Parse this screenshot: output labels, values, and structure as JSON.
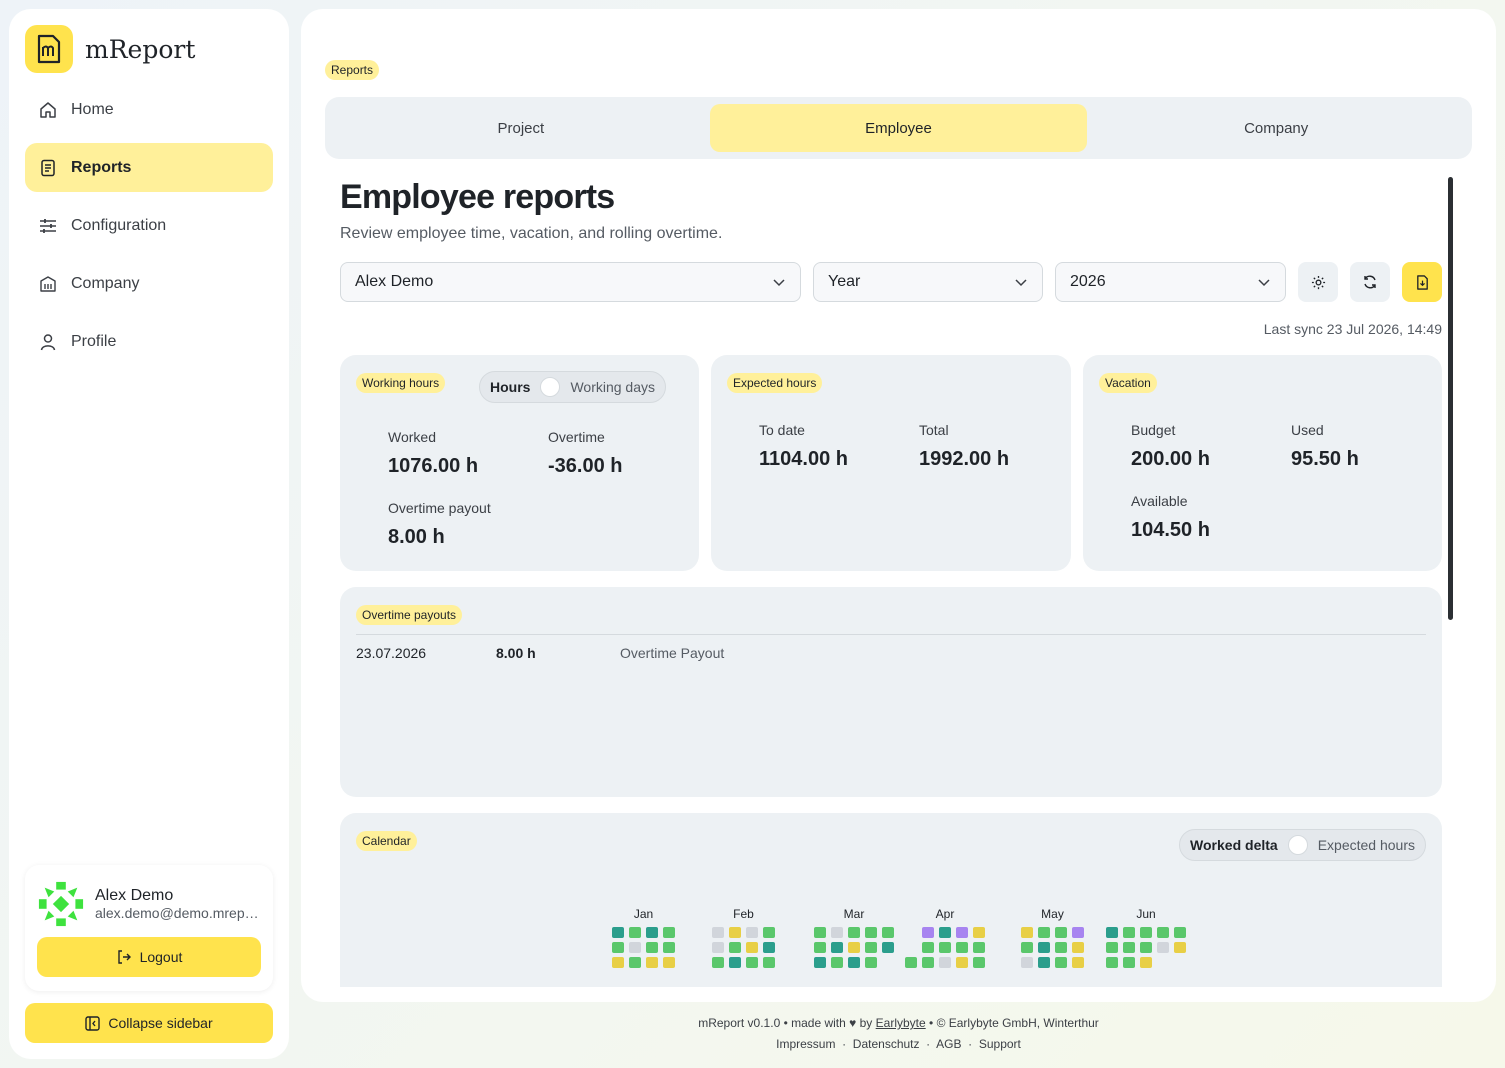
{
  "brand": {
    "name": "mReport"
  },
  "nav": [
    {
      "label": "Home",
      "icon": "home-icon"
    },
    {
      "label": "Reports",
      "icon": "report-icon",
      "active": true
    },
    {
      "label": "Configuration",
      "icon": "sliders-icon"
    },
    {
      "label": "Company",
      "icon": "building-icon"
    },
    {
      "label": "Profile",
      "icon": "user-icon"
    }
  ],
  "user": {
    "name": "Alex Demo",
    "email": "alex.demo@demo.mreport.ch",
    "logout_label": "Logout"
  },
  "collapse_label": "Collapse sidebar",
  "breadcrumb": "Reports",
  "tabs": [
    "Project",
    "Employee",
    "Company"
  ],
  "page": {
    "title": "Employee reports",
    "subtitle": "Review employee time, vacation, and rolling overtime.",
    "filters": {
      "employee": "Alex Demo",
      "period": "Year",
      "year": "2026"
    },
    "sync": "Last sync 23 Jul 2026, 14:49"
  },
  "working_hours": {
    "tag": "Working hours",
    "toggle_on": "Hours",
    "toggle_off": "Working days",
    "worked_label": "Worked",
    "worked_value": "1076.00 h",
    "overtime_label": "Overtime",
    "overtime_value": "-36.00 h",
    "payout_label": "Overtime payout",
    "payout_value": "8.00 h"
  },
  "expected_hours": {
    "tag": "Expected hours",
    "todate_label": "To date",
    "todate_value": "1104.00 h",
    "total_label": "Total",
    "total_value": "1992.00 h"
  },
  "vacation": {
    "tag": "Vacation",
    "budget_label": "Budget",
    "budget_value": "200.00 h",
    "used_label": "Used",
    "used_value": "95.50 h",
    "available_label": "Available",
    "available_value": "104.50 h"
  },
  "overtime_payouts": {
    "tag": "Overtime payouts",
    "rows": [
      {
        "date": "23.07.2026",
        "hours": "8.00 h",
        "type": "Overtime Payout"
      }
    ]
  },
  "calendar": {
    "tag": "Calendar",
    "toggle_on": "Worked delta",
    "toggle_off": "Expected hours",
    "colors": {
      "g": "#5ac76b",
      "t": "#2b9e8c",
      "y": "#e8cf45",
      "s": "#d1d5db",
      "p": "#a784f0"
    },
    "months": [
      {
        "label": "Jan",
        "cells": [
          "t",
          "g",
          "y",
          "g",
          "s",
          "g",
          "t",
          "g",
          "y",
          "g",
          "g",
          "y"
        ]
      },
      {
        "label": "Feb",
        "cells": [
          "s",
          "s",
          "g",
          "y",
          "g",
          "t",
          "s",
          "y",
          "g",
          "g",
          "t",
          "g"
        ]
      },
      {
        "label": "Mar",
        "cells": [
          "g",
          "g",
          "t",
          "s",
          "t",
          "g",
          "g",
          "y",
          "t",
          "g",
          "g",
          "g",
          "g",
          "t",
          ""
        ]
      },
      {
        "label": "Apr",
        "cells": [
          "",
          "",
          "g",
          "p",
          "g",
          "g",
          "t",
          "g",
          "s",
          "p",
          "g",
          "y",
          "y",
          "g",
          "g"
        ]
      },
      {
        "label": "May",
        "cells": [
          "y",
          "g",
          "s",
          "g",
          "t",
          "t",
          "g",
          "g",
          "g",
          "p",
          "y",
          "y"
        ]
      },
      {
        "label": "Jun",
        "cells": [
          "t",
          "g",
          "g",
          "g",
          "g",
          "g",
          "g",
          "g",
          "y",
          "g",
          "s",
          "",
          "g",
          "y",
          ""
        ]
      }
    ]
  },
  "footer": {
    "line1_prefix": "mReport v0.1.0 • made with",
    "line1_by": "by",
    "line1_link": "Earlybyte",
    "line1_suffix": "• © Earlybyte GmbH, Winterthur",
    "links": [
      "Impressum",
      "Datenschutz",
      "AGB",
      "Support"
    ]
  }
}
